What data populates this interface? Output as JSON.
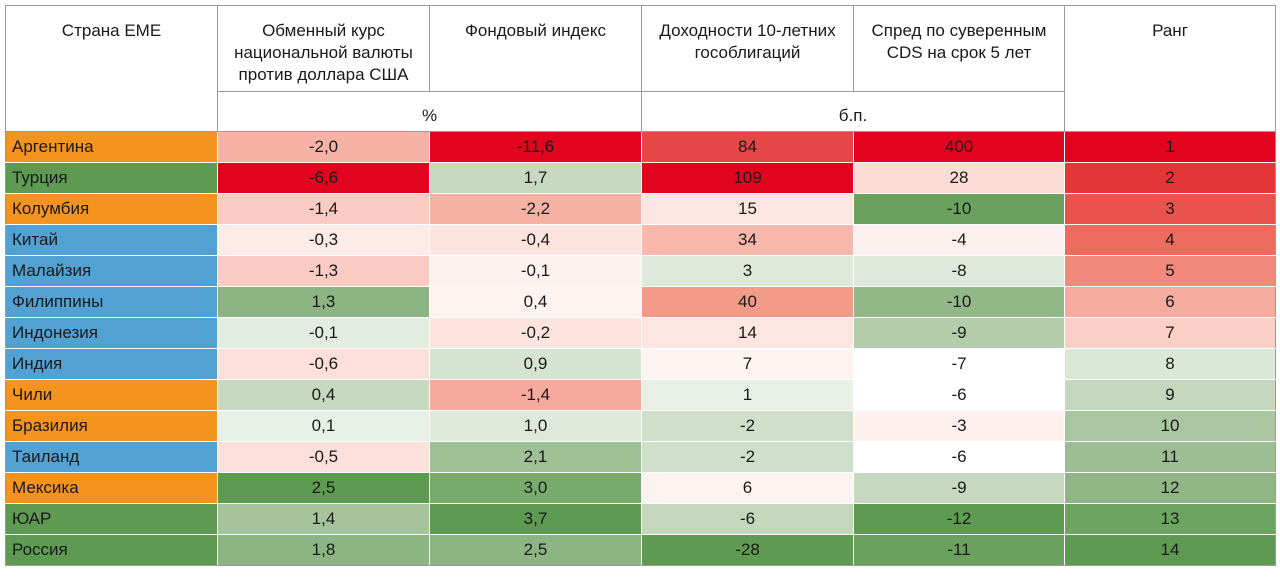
{
  "table": {
    "headers": {
      "country": "Страна ЕМЕ",
      "fx": "Обменный курс национальной валюты против доллара США",
      "equity": "Фондовый индекс",
      "yield": "Доходности 10-летних гособлигаций",
      "cds": "Спред по суверенным CDS на срок 5 лет",
      "rank": "Ранг"
    },
    "units": {
      "percent": "%",
      "bp": "б.п."
    },
    "rows": [
      {
        "country": "Аргентина",
        "fx": "-2,0",
        "equity": "-11,6",
        "yield": "84",
        "cds": "400",
        "rank": "1",
        "colors": {
          "country": "#f4931e",
          "fx": "#f7b2a6",
          "equity": "#e2041f",
          "yield": "#e54646",
          "cds": "#e2041f",
          "rank": "#e2041f"
        }
      },
      {
        "country": "Турция",
        "fx": "-6,6",
        "equity": "1,7",
        "yield": "109",
        "cds": "28",
        "rank": "2",
        "colors": {
          "country": "#5e9a52",
          "fx": "#e2041f",
          "equity": "#c6d8c0",
          "yield": "#e2041f",
          "cds": "#fbdcd5",
          "rank": "#e43537"
        }
      },
      {
        "country": "Колумбия",
        "fx": "-1,4",
        "equity": "-2,2",
        "yield": "15",
        "cds": "-10",
        "rank": "3",
        "colors": {
          "country": "#f4931e",
          "fx": "#f9cbc2",
          "equity": "#f7b2a6",
          "yield": "#fde6e1",
          "cds": "#6aa15d",
          "rank": "#e9534b"
        }
      },
      {
        "country": "Китай",
        "fx": "-0,3",
        "equity": "-0,4",
        "yield": "34",
        "cds": "-4",
        "rank": "4",
        "colors": {
          "country": "#52a1d3",
          "fx": "#fdebe7",
          "equity": "#fde4df",
          "yield": "#f8b8ac",
          "cds": "#fdf1ef",
          "rank": "#ee6c5e"
        }
      },
      {
        "country": "Малайзия",
        "fx": "-1,3",
        "equity": "-0,1",
        "yield": "3",
        "cds": "-8",
        "rank": "5",
        "colors": {
          "country": "#52a1d3",
          "fx": "#f9cbc2",
          "equity": "#fdf2ef",
          "yield": "#dfe9db",
          "cds": "#dfe9db",
          "rank": "#f18a7b"
        }
      },
      {
        "country": "Филиппины",
        "fx": "1,3",
        "equity": "0,4",
        "yield": "40",
        "cds": "-10",
        "rank": "6",
        "colors": {
          "country": "#52a1d3",
          "fx": "#8db583",
          "equity": "#fdf3f0",
          "yield": "#f49a89",
          "cds": "#92b887",
          "rank": "#f6ab9f"
        }
      },
      {
        "country": "Индонезия",
        "fx": "-0,1",
        "equity": "-0,2",
        "yield": "14",
        "cds": "-9",
        "rank": "7",
        "colors": {
          "country": "#52a1d3",
          "fx": "#e2ece0",
          "equity": "#fde4df",
          "yield": "#fde6e1",
          "cds": "#b3cca9",
          "rank": "#fad0c6"
        }
      },
      {
        "country": "Индия",
        "fx": "-0,6",
        "equity": "0,9",
        "yield": "7",
        "cds": "-7",
        "rank": "8",
        "colors": {
          "country": "#52a1d3",
          "fx": "#fde0da",
          "equity": "#d5e3d0",
          "yield": "#fdf3f0",
          "cds": "#ffffff",
          "rank": "#dce8d7"
        }
      },
      {
        "country": "Чили",
        "fx": "0,4",
        "equity": "-1,4",
        "yield": "1",
        "cds": "-6",
        "rank": "9",
        "colors": {
          "country": "#f4931e",
          "fx": "#c7d9c1",
          "equity": "#f6a99c",
          "yield": "#e8f0e6",
          "cds": "#ffffff",
          "rank": "#c4d7bd"
        }
      },
      {
        "country": "Бразилия",
        "fx": "0,1",
        "equity": "1,0",
        "yield": "-2",
        "cds": "-3",
        "rank": "10",
        "colors": {
          "country": "#f4931e",
          "fx": "#e8f0e6",
          "equity": "#dfe9db",
          "yield": "#cfdfca",
          "cds": "#fdf0ed",
          "rank": "#aac6a0"
        }
      },
      {
        "country": "Таиланд",
        "fx": "-0,5",
        "equity": "2,1",
        "yield": "-2",
        "cds": "-6",
        "rank": "11",
        "colors": {
          "country": "#52a1d3",
          "fx": "#fde0da",
          "equity": "#9fbf95",
          "yield": "#cfdfca",
          "cds": "#ffffff",
          "rank": "#9dbd92"
        }
      },
      {
        "country": "Мексика",
        "fx": "2,5",
        "equity": "3,0",
        "yield": "6",
        "cds": "-9",
        "rank": "12",
        "colors": {
          "country": "#f4931e",
          "fx": "#5e9a52",
          "equity": "#78aa6b",
          "yield": "#fdf3f0",
          "cds": "#c6d8c0",
          "rank": "#8fb684"
        }
      },
      {
        "country": "ЮАР",
        "fx": "1,4",
        "equity": "3,7",
        "yield": "-6",
        "cds": "-12",
        "rank": "13",
        "colors": {
          "country": "#5e9a52",
          "fx": "#a6c49c",
          "equity": "#5e9a52",
          "yield": "#c4d7bd",
          "cds": "#5e9a52",
          "rank": "#6ea462"
        }
      },
      {
        "country": "Россия",
        "fx": "1,8",
        "equity": "2,5",
        "yield": "-28",
        "cds": "-11",
        "rank": "14",
        "colors": {
          "country": "#5e9a52",
          "fx": "#8db583",
          "equity": "#8db583",
          "yield": "#5e9a52",
          "cds": "#6aa15d",
          "rank": "#5e9a52"
        }
      }
    ]
  }
}
